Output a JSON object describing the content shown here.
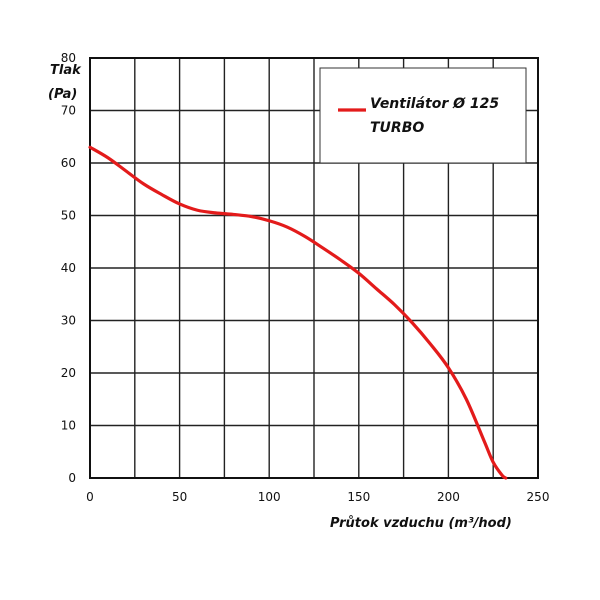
{
  "chart_data": {
    "type": "line",
    "xlabel": "Průtok vzduchu (m³/hod)",
    "ylabel_line1": "Tlak",
    "ylabel_line2": "(Pa)",
    "xlim": [
      0,
      250
    ],
    "ylim": [
      0,
      80
    ],
    "x_ticks": [
      0,
      50,
      100,
      150,
      200,
      250
    ],
    "y_ticks": [
      0,
      10,
      20,
      30,
      40,
      50,
      60,
      70,
      80
    ],
    "x_grid_step": 25,
    "y_grid_step": 10,
    "grid": true,
    "legend_position": "top-right",
    "series": [
      {
        "name_line1": "Ventilátor Ø 125",
        "name_line2": "TURBO",
        "color": "#e31b1b",
        "x": [
          0,
          10,
          20,
          30,
          40,
          50,
          60,
          70,
          80,
          90,
          100,
          110,
          120,
          130,
          140,
          150,
          160,
          170,
          180,
          190,
          200,
          210,
          220,
          225,
          230,
          232
        ],
        "y": [
          63,
          61,
          58.5,
          56,
          54,
          52.2,
          51,
          50.5,
          50.2,
          49.8,
          49,
          47.8,
          46,
          43.8,
          41.5,
          39,
          36,
          33,
          29.5,
          25.5,
          21,
          15,
          7,
          3,
          0.5,
          0
        ]
      }
    ]
  }
}
